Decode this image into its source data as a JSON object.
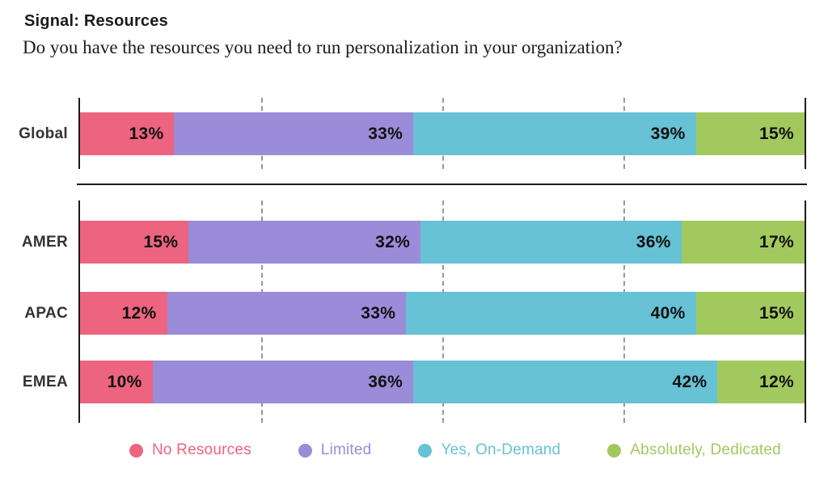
{
  "header": {
    "title": "Signal: Resources",
    "subtitle": "Do you have the resources you need to run personalization in your organization?"
  },
  "chart_data": {
    "type": "bar",
    "orientation": "horizontal_stacked",
    "title": "Signal: Resources",
    "subtitle": "Do you have the resources you need to run personalization in your organization?",
    "categories": [
      "Global",
      "AMER",
      "APAC",
      "EMEA"
    ],
    "row_groups": [
      [
        0
      ],
      [
        1,
        2,
        3
      ]
    ],
    "series": [
      {
        "key": "no-resources",
        "name": "No Resources",
        "color": "#ED6480",
        "values": [
          13,
          15,
          12,
          10
        ]
      },
      {
        "key": "limited",
        "name": "Limited",
        "color": "#9A8CD8",
        "values": [
          33,
          32,
          33,
          36
        ]
      },
      {
        "key": "yes-on-demand",
        "name": "Yes, On-Demand",
        "color": "#66C2D4",
        "values": [
          39,
          36,
          40,
          42
        ]
      },
      {
        "key": "absolutely-dedicated",
        "name": "Absolutely, Dedicated",
        "color": "#A2C95E",
        "values": [
          15,
          17,
          15,
          12
        ]
      }
    ],
    "value_suffix": "%",
    "xlim": [
      0,
      100
    ],
    "gridlines_pct": [
      25,
      50,
      75
    ],
    "grid": "dashed-vertical",
    "legend_position": "bottom",
    "colors": {
      "axis": "#1a1a1a",
      "gridline": "#979797",
      "value_label": "#101010",
      "row_label": "#333333"
    }
  }
}
